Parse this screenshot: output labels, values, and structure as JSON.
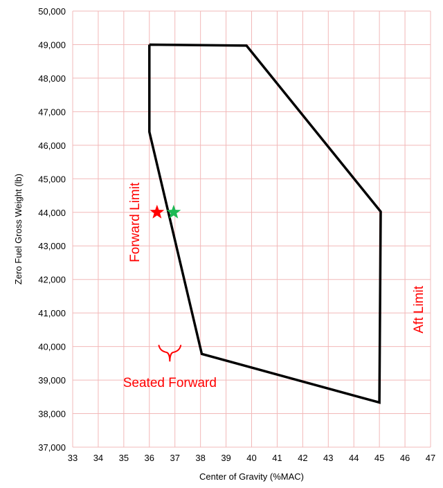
{
  "chart_data": {
    "type": "line",
    "xlabel": "Center of Gravity (%MAC)",
    "ylabel": "Zero Fuel Gross Weight (lb)",
    "xlim": [
      33,
      47
    ],
    "ylim": [
      37000,
      50000
    ],
    "x_ticks": [
      "33",
      "34",
      "35",
      "36",
      "37",
      "38",
      "39",
      "40",
      "41",
      "42",
      "43",
      "44",
      "45",
      "46",
      "47"
    ],
    "y_ticks": [
      "37,000",
      "38,000",
      "39,000",
      "40,000",
      "41,000",
      "42,000",
      "43,000",
      "44,000",
      "45,000",
      "46,000",
      "47,000",
      "48,000",
      "49,000",
      "50,000"
    ],
    "grid": true,
    "grid_color": "#f2b8b8",
    "envelope": [
      {
        "x": 36.0,
        "y": 49000
      },
      {
        "x": 39.8,
        "y": 48970
      },
      {
        "x": 45.05,
        "y": 44020
      },
      {
        "x": 45.0,
        "y": 38330
      },
      {
        "x": 38.05,
        "y": 39780
      },
      {
        "x": 36.0,
        "y": 46400
      },
      {
        "x": 36.0,
        "y": 49000
      }
    ],
    "envelope_color": "#000000",
    "markers": [
      {
        "x": 36.3,
        "y": 44000,
        "color": "#ff0000",
        "shape": "star"
      },
      {
        "x": 36.95,
        "y": 44000,
        "color": "#1db954",
        "shape": "star"
      }
    ],
    "annotations": [
      {
        "text": "Forward Limit",
        "x": 35.6,
        "y": 43700,
        "rotate": -90,
        "color": "#ff0000"
      },
      {
        "text": "Aft Limit",
        "x": 46.7,
        "y": 41100,
        "rotate": -90,
        "color": "#ff0000"
      },
      {
        "text": "Seated Forward",
        "x": 36.8,
        "y": 38800,
        "rotate": 0,
        "color": "#ff0000"
      }
    ],
    "brace": {
      "x": 36.8,
      "y": 39800,
      "color": "#ff0000"
    }
  }
}
